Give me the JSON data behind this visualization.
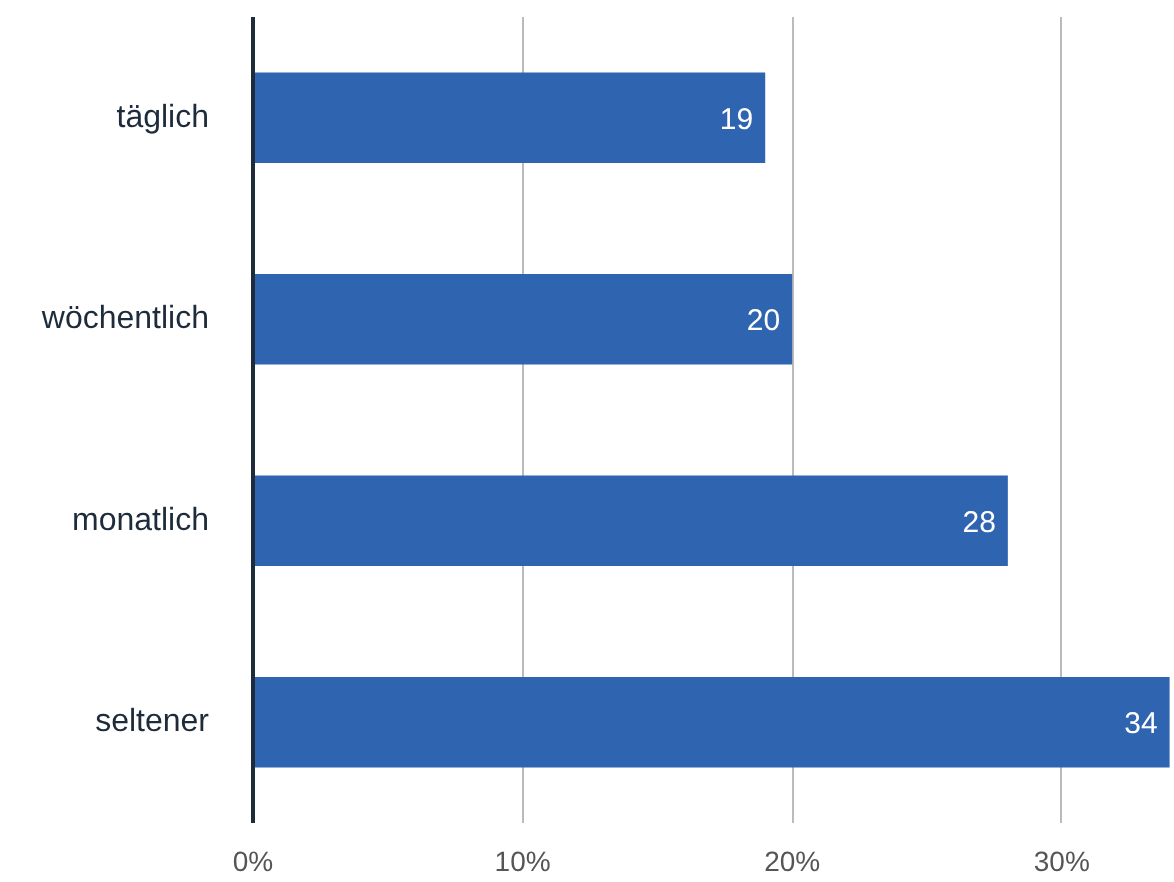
{
  "chart_data": {
    "type": "bar",
    "orientation": "horizontal",
    "categories": [
      "täglich",
      "wöchentlich",
      "monatlich",
      "seltener"
    ],
    "values": [
      19,
      20,
      28,
      34
    ],
    "color": "#2f64b1",
    "xlim": [
      0,
      34.2
    ],
    "xticks": [
      {
        "value": 0,
        "label": "0%"
      },
      {
        "value": 10,
        "label": "10%"
      },
      {
        "value": 20,
        "label": "20%"
      },
      {
        "value": 30,
        "label": "30%"
      }
    ],
    "grid": "x",
    "data_labels": true
  }
}
